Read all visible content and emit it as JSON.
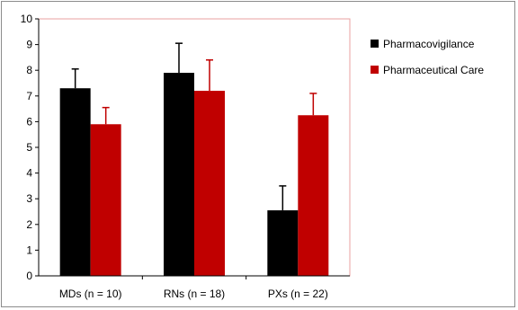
{
  "chart_data": {
    "type": "bar",
    "categories": [
      "MDs (n = 10)",
      "RNs (n = 18)",
      "PXs (n = 22)"
    ],
    "series": [
      {
        "name": "Pharmacovigilance",
        "color": "#000000",
        "values": [
          7.3,
          7.9,
          2.55
        ],
        "errors": [
          0.75,
          1.15,
          0.95
        ]
      },
      {
        "name": "Pharmaceutical Care",
        "color": "#c00000",
        "values": [
          5.9,
          7.2,
          6.25
        ],
        "errors": [
          0.65,
          1.2,
          0.85
        ]
      }
    ],
    "title": "",
    "xlabel": "",
    "ylabel": "",
    "ylim": [
      0,
      10
    ],
    "yticks": [
      0,
      1,
      2,
      3,
      4,
      5,
      6,
      7,
      8,
      9,
      10
    ],
    "grid": false,
    "legend": "right"
  }
}
